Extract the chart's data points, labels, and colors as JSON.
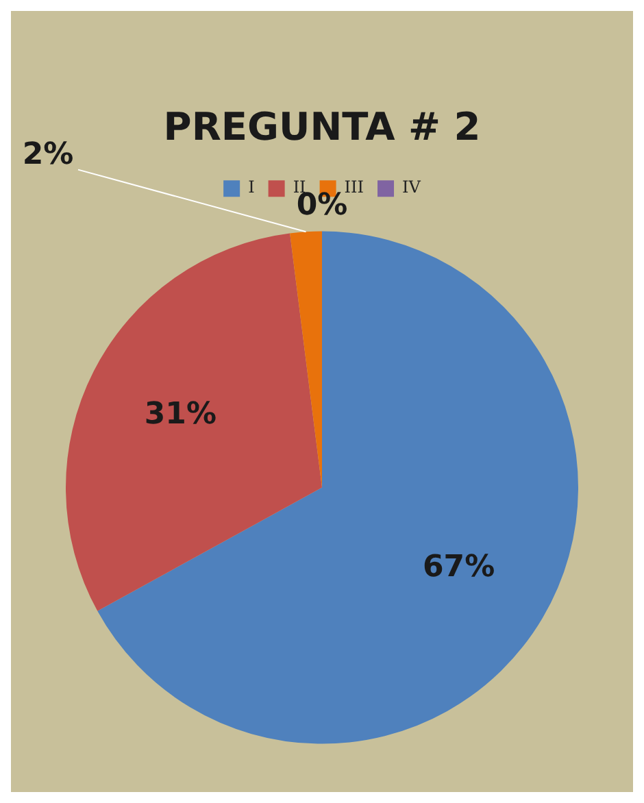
{
  "chart_data": {
    "type": "pie",
    "title": "PREGUNTA # 2",
    "categories": [
      "I",
      "II",
      "III",
      "IV"
    ],
    "values": [
      67,
      31,
      2,
      0
    ],
    "colors": [
      "#4f81bd",
      "#c0504d",
      "#e8720c",
      "#8064a2"
    ],
    "value_labels": [
      "67%",
      "31%",
      "2%",
      "0%"
    ],
    "legend": "top"
  }
}
